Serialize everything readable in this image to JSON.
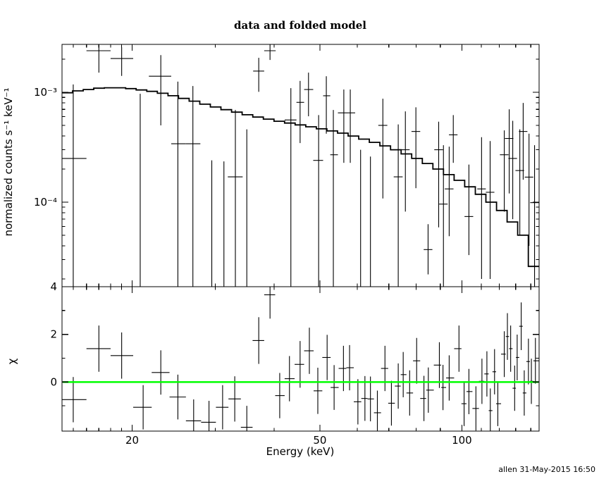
{
  "window": {
    "timestamp": "allen 31-May-2015 16:50"
  },
  "chart_data": {
    "type": "line",
    "subtype": "xspec-spectrum-with-residuals",
    "title": "data and folded model",
    "xlabel": "Energy (keV)",
    "xscale": "log",
    "xlim": [
      14.2,
      145.8
    ],
    "xticks_labeled": [
      {
        "value": 20,
        "label": "20"
      },
      {
        "value": 50,
        "label": "50"
      },
      {
        "value": 100,
        "label": "100"
      }
    ],
    "xticks_minor": [
      15,
      16,
      17,
      18,
      19,
      30,
      40,
      60,
      70,
      80,
      90,
      110,
      120,
      130,
      140
    ],
    "colors": {
      "data": "#000000",
      "model": "#000000",
      "zero_line": "#00ff00",
      "frame": "#000000",
      "background": "#ffffff"
    },
    "panels": [
      {
        "name": "spectrum",
        "ylabel": "normalized counts s⁻¹ keV⁻¹",
        "yscale": "log",
        "ylim": [
          1.7e-05,
          0.00273
        ],
        "yticks_labeled": [
          {
            "value": 0.001,
            "label": "10⁻³"
          },
          {
            "value": 0.0001,
            "label": "10⁻⁴"
          }
        ],
        "yticks_minor": [
          0.002,
          0.0009,
          0.0008,
          0.0007,
          0.0006,
          0.0005,
          0.0004,
          0.0003,
          0.0002,
          9e-05,
          8e-05,
          7e-05,
          6e-05,
          5e-05,
          4e-05,
          3e-05,
          2e-05
        ]
      },
      {
        "name": "residuals",
        "ylabel": "χ",
        "yscale": "linear",
        "ylim": [
          -2.06,
          4.0
        ],
        "yticks_labeled": [
          {
            "value": 4,
            "label": "4"
          },
          {
            "value": 2,
            "label": "2"
          },
          {
            "value": 0,
            "label": "0"
          }
        ],
        "yticks_minor": [
          3,
          1,
          -1
        ],
        "zero_line_value": 0
      }
    ],
    "model": {
      "description": "folded model, stepped histogram (counts s-1 keV-1)",
      "bin_edges_keV": [
        14.2,
        14.95,
        15.75,
        16.58,
        17.46,
        18.39,
        19.37,
        20.39,
        21.48,
        22.62,
        23.82,
        25.08,
        26.41,
        27.82,
        29.29,
        30.85,
        32.49,
        34.21,
        36.03,
        37.94,
        39.96,
        42.08,
        44.31,
        46.67,
        49.14,
        51.75,
        54.5,
        57.4,
        60.44,
        63.65,
        67.03,
        70.59,
        74.34,
        78.29,
        82.44,
        86.82,
        91.43,
        96.29,
        101.4,
        106.79,
        112.46,
        118.43,
        124.72,
        131.34,
        138.32,
        145.8
      ],
      "values": [
        0.00099,
        0.00103,
        0.00106,
        0.00109,
        0.0011,
        0.0011,
        0.00108,
        0.00105,
        0.00102,
        0.00098,
        0.00093,
        0.00088,
        0.00083,
        0.00078,
        0.000735,
        0.000695,
        0.00066,
        0.000625,
        0.000595,
        0.00057,
        0.000545,
        0.000525,
        0.000505,
        0.000485,
        0.000465,
        0.000445,
        0.000425,
        0.0004,
        0.000375,
        0.00035,
        0.000325,
        0.0003,
        0.000275,
        0.00025,
        0.000225,
        0.0002,
        0.000178,
        0.000158,
        0.000138,
        0.000118,
        0.0001,
        8.4e-05,
        6.6e-05,
        5e-05,
        2.6e-05
      ]
    },
    "spectrum_points_columns": [
      "energy_keV",
      "energy_lo",
      "energy_hi",
      "value",
      "err_lo_value",
      "err_hi_value"
    ],
    "spectrum_points": [
      [
        15.0,
        14.2,
        16.0,
        0.00025,
        1.5e-05,
        0.00118
      ],
      [
        17.0,
        16.0,
        18.0,
        0.00239,
        0.00151,
        0.0029
      ],
      [
        19.0,
        18.0,
        20.1,
        0.00203,
        0.00141,
        0.00257
      ],
      [
        20.8,
        20.1,
        21.7,
        null,
        1.5e-05,
        0.00097
      ],
      [
        23.0,
        21.7,
        24.2,
        0.0014,
        0.0005,
        0.00218
      ],
      [
        25.0,
        24.2,
        26.0,
        0.00034,
        1.5e-05,
        0.00125
      ],
      [
        26.9,
        26.0,
        27.9,
        0.00034,
        1.5e-05,
        0.00114
      ],
      [
        29.5,
        28.5,
        30.5,
        null,
        1.5e-05,
        0.00024
      ],
      [
        31.3,
        30.3,
        32.3,
        null,
        1.5e-05,
        0.000235
      ],
      [
        33.1,
        31.9,
        34.3,
        0.00017,
        1.5e-05,
        0.00069
      ],
      [
        35.0,
        34.3,
        36.1,
        null,
        1.5e-05,
        0.00046
      ],
      [
        37.1,
        36.1,
        38.1,
        0.00156,
        0.00101,
        0.00206
      ],
      [
        39.2,
        38.1,
        40.3,
        0.00239,
        0.00197,
        0.0028
      ],
      [
        43.4,
        42.1,
        44.6,
        0.00056,
        1.5e-05,
        0.00109
      ],
      [
        45.4,
        44.6,
        46.3,
        0.00081,
        0.000345,
        0.00127
      ],
      [
        47.3,
        46.3,
        48.4,
        0.00106,
        0.000605,
        0.00151
      ],
      [
        49.7,
        48.4,
        50.8,
        0.00024,
        1.5e-05,
        0.00062
      ],
      [
        51.6,
        50.8,
        52.6,
        0.00093,
        0.00042,
        0.0014
      ],
      [
        53.4,
        52.6,
        54.6,
        0.00027,
        1.5e-05,
        0.00069
      ],
      [
        56.2,
        54.6,
        57.4,
        0.00065,
        0.000228,
        0.00106
      ],
      [
        58.0,
        57.4,
        59.4,
        0.00065,
        0.000228,
        0.00106
      ],
      [
        61.0,
        59.4,
        63.0,
        null,
        1.5e-05,
        0.0003
      ],
      [
        64.0,
        63.0,
        65.5,
        null,
        1.5e-05,
        0.00026
      ],
      [
        68.0,
        66.5,
        69.5,
        0.0005,
        0.000108,
        0.000875
      ],
      [
        73.3,
        71.7,
        74.9,
        0.00017,
        1.5e-05,
        0.00051
      ],
      [
        75.9,
        74.3,
        77.5,
        0.0003,
        8.2e-05,
        0.00067
      ],
      [
        79.9,
        78.2,
        81.6,
        0.00044,
        0.000134,
        0.00073
      ],
      [
        84.8,
        83.0,
        86.6,
        3.7e-05,
        2.2e-05,
        6.3e-05
      ],
      [
        89.3,
        87.4,
        91.2,
        0.0003,
        5.9e-05,
        0.00054
      ],
      [
        91.4,
        89.5,
        93.3,
        9.6e-05,
        1.5e-05,
        0.00033
      ],
      [
        94.0,
        92.0,
        96.0,
        0.000132,
        4.9e-05,
        0.00032
      ],
      [
        95.9,
        93.9,
        97.9,
        0.00041,
        0.000228,
        0.00062
      ],
      [
        103.5,
        101.3,
        105.7,
        7.4e-05,
        3.3e-05,
        0.00022
      ],
      [
        110.1,
        107.8,
        112.4,
        0.000132,
        2e-05,
        0.00039
      ],
      [
        114.8,
        112.4,
        117.2,
        0.000123,
        2e-05,
        0.00036
      ],
      [
        123.0,
        120.4,
        125.6,
        0.00027,
        8.2e-05,
        0.00045
      ],
      [
        126.0,
        123.4,
        128.6,
        0.00038,
        0.00012,
        0.0007
      ],
      [
        128.2,
        125.5,
        130.9,
        0.00025,
        7e-05,
        0.00055
      ],
      [
        132.7,
        129.9,
        135.5,
        0.000194,
        5e-05,
        0.00046
      ],
      [
        134.9,
        132.1,
        137.7,
        0.00044,
        0.00016,
        0.0008
      ],
      [
        138.8,
        135.9,
        141.7,
        0.000169,
        4e-05,
        0.00042
      ],
      [
        142.6,
        139.6,
        145.6,
        9.9e-05,
        1.5e-05,
        0.00033
      ]
    ],
    "chi_points_columns": [
      "energy_keV",
      "energy_lo",
      "energy_hi",
      "chi",
      "chi_err"
    ],
    "chi_points": [
      [
        15.0,
        14.2,
        16.0,
        -0.74,
        0.95
      ],
      [
        17.0,
        16.0,
        18.0,
        1.4,
        0.97
      ],
      [
        19.0,
        18.0,
        20.1,
        1.11,
        0.97
      ],
      [
        21.1,
        20.1,
        22.0,
        -1.06,
        0.93
      ],
      [
        23.0,
        22.0,
        24.0,
        0.4,
        0.93
      ],
      [
        25.0,
        24.0,
        26.0,
        -0.63,
        0.94
      ],
      [
        27.0,
        26.0,
        28.0,
        -1.63,
        0.9
      ],
      [
        29.1,
        28.0,
        30.1,
        -1.69,
        0.9
      ],
      [
        31.1,
        30.1,
        32.0,
        -1.06,
        0.93
      ],
      [
        33.0,
        32.0,
        34.0,
        -0.71,
        0.95
      ],
      [
        35.0,
        34.0,
        36.0,
        -1.9,
        0.9
      ],
      [
        37.1,
        36.0,
        38.1,
        1.74,
        0.98
      ],
      [
        39.2,
        38.1,
        40.2,
        3.66,
        1.0
      ],
      [
        41.1,
        40.2,
        42.1,
        -0.57,
        0.95
      ],
      [
        43.1,
        42.1,
        44.2,
        0.14,
        0.95
      ],
      [
        45.4,
        44.2,
        46.3,
        0.74,
        0.98
      ],
      [
        47.5,
        46.3,
        48.5,
        1.31,
        0.97
      ],
      [
        49.5,
        48.5,
        50.6,
        -0.37,
        0.97
      ],
      [
        51.8,
        50.6,
        52.7,
        1.03,
        0.95
      ],
      [
        53.6,
        52.7,
        54.8,
        -0.23,
        0.94
      ],
      [
        56.1,
        54.8,
        56.9,
        0.57,
        0.95
      ],
      [
        57.8,
        56.9,
        59.0,
        0.6,
        0.95
      ],
      [
        60.2,
        59.0,
        61.2,
        -0.83,
        0.95
      ],
      [
        62.3,
        61.2,
        63.1,
        -0.69,
        0.94
      ],
      [
        64.0,
        63.1,
        65.1,
        -0.71,
        0.94
      ],
      [
        66.2,
        65.1,
        67.4,
        -1.29,
        0.93
      ],
      [
        68.7,
        67.4,
        69.8,
        0.57,
        0.95
      ],
      [
        70.9,
        69.8,
        72.1,
        -0.89,
        0.94
      ],
      [
        73.3,
        72.1,
        74.2,
        -0.17,
        0.95
      ],
      [
        75.1,
        74.2,
        76.3,
        0.31,
        0.95
      ],
      [
        77.5,
        76.3,
        78.8,
        -0.46,
        0.95
      ],
      [
        80.2,
        78.8,
        81.6,
        0.89,
        0.96
      ],
      [
        83.1,
        81.6,
        84.0,
        -0.69,
        0.95
      ],
      [
        84.9,
        84.0,
        87.2,
        -0.34,
        0.95
      ],
      [
        89.6,
        87.2,
        90.4,
        0.71,
        0.96
      ],
      [
        91.2,
        90.4,
        92.6,
        -0.23,
        0.95
      ],
      [
        94.0,
        92.6,
        96.3,
        0.17,
        0.95
      ],
      [
        98.6,
        96.3,
        99.8,
        1.4,
        0.97
      ],
      [
        101.1,
        99.8,
        102.3,
        -0.91,
        0.94
      ],
      [
        103.5,
        102.3,
        105.3,
        -0.4,
        0.95
      ],
      [
        107.1,
        105.3,
        108.7,
        -1.11,
        0.93
      ],
      [
        110.3,
        108.7,
        111.6,
        0.03,
        0.95
      ],
      [
        113.0,
        111.6,
        114.0,
        0.34,
        0.95
      ],
      [
        114.9,
        114.0,
        116.1,
        -1.2,
        0.93
      ],
      [
        117.3,
        116.1,
        118.2,
        0.43,
        0.95
      ],
      [
        119.2,
        118.2,
        121.1,
        -0.91,
        0.94
      ],
      [
        123.0,
        121.1,
        123.9,
        1.17,
        0.96
      ],
      [
        124.9,
        123.9,
        125.9,
        1.91,
        0.98
      ],
      [
        126.9,
        125.9,
        128.1,
        1.4,
        0.97
      ],
      [
        129.4,
        128.1,
        130.2,
        -0.26,
        0.95
      ],
      [
        131.0,
        130.2,
        132.3,
        1.03,
        0.96
      ],
      [
        133.6,
        132.3,
        134.6,
        2.34,
        1.0
      ],
      [
        135.6,
        134.6,
        137.0,
        -0.46,
        0.95
      ],
      [
        138.4,
        137.0,
        139.4,
        0.86,
        0.96
      ],
      [
        140.4,
        139.4,
        141.8,
        0.03,
        0.95
      ],
      [
        143.2,
        141.8,
        145.8,
        0.89,
        0.96
      ]
    ]
  }
}
